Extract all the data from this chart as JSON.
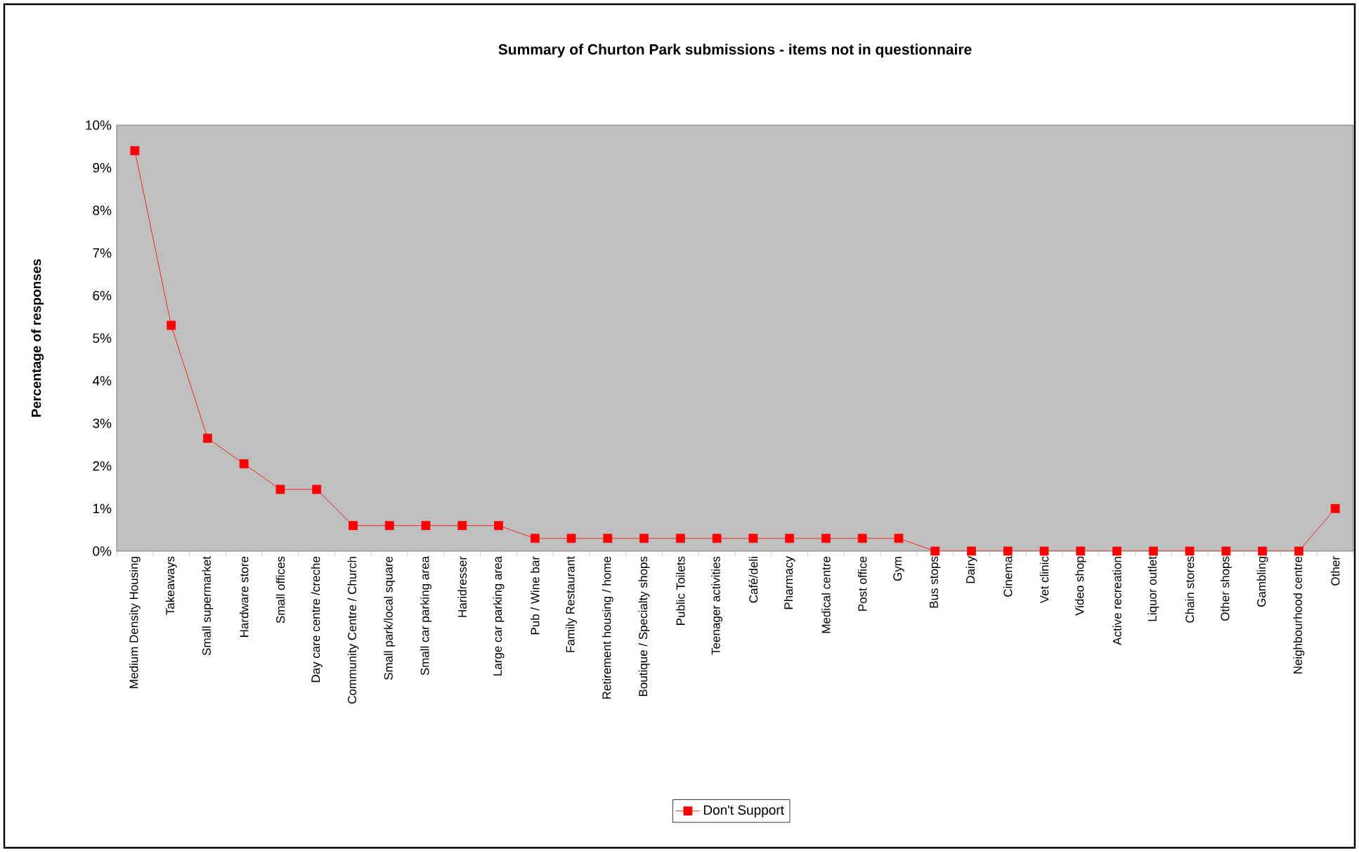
{
  "chart_data": {
    "type": "line",
    "title": "Summary of Churton Park submissions - items not in questionnaire",
    "ylabel": "Percentage of responses",
    "categories": [
      "Medium Density Housing",
      "Takeaways",
      "Small supermarket",
      "Hardware store",
      "Small offices",
      "Day care centre /creche",
      "Community Centre / Church",
      "Small park/local square",
      "Small car parking area",
      "Haridresser",
      "Large car parking area",
      "Pub / Wine bar",
      "Family Restaurant",
      "Retirement housing / home",
      "Boutique / Specialty shops",
      "Public Toilets",
      "Teenager activities",
      "Café/deli",
      "Pharmacy",
      "Medical centre",
      "Post office",
      "Gym",
      "Bus stops",
      "Dairy",
      "Cinema",
      "Vet clinic",
      "Video shop",
      "Active recreation",
      "Liquor outlet",
      "Chain stores",
      "Other shops",
      "Gambling",
      "Neighbourhood centre",
      "Other"
    ],
    "series": [
      {
        "name": "Don't Support",
        "color": "#ff0000",
        "values": [
          9.4,
          5.3,
          2.65,
          2.05,
          1.45,
          1.45,
          0.6,
          0.6,
          0.6,
          0.6,
          0.6,
          0.3,
          0.3,
          0.3,
          0.3,
          0.3,
          0.3,
          0.3,
          0.3,
          0.3,
          0.3,
          0.3,
          0,
          0,
          0,
          0,
          0,
          0,
          0,
          0,
          0,
          0,
          0,
          1.0
        ]
      }
    ],
    "ylim": [
      0,
      10
    ],
    "yticks": [
      {
        "value": 0,
        "label": "0%"
      },
      {
        "value": 1,
        "label": "1%"
      },
      {
        "value": 2,
        "label": "2%"
      },
      {
        "value": 3,
        "label": "3%"
      },
      {
        "value": 4,
        "label": "4%"
      },
      {
        "value": 5,
        "label": "5%"
      },
      {
        "value": 6,
        "label": "6%"
      },
      {
        "value": 7,
        "label": "7%"
      },
      {
        "value": 8,
        "label": "8%"
      },
      {
        "value": 9,
        "label": "9%"
      },
      {
        "value": 10,
        "label": "10%"
      }
    ],
    "grid": false,
    "legend": "bottom",
    "marker": "square",
    "line_style": "solid"
  }
}
